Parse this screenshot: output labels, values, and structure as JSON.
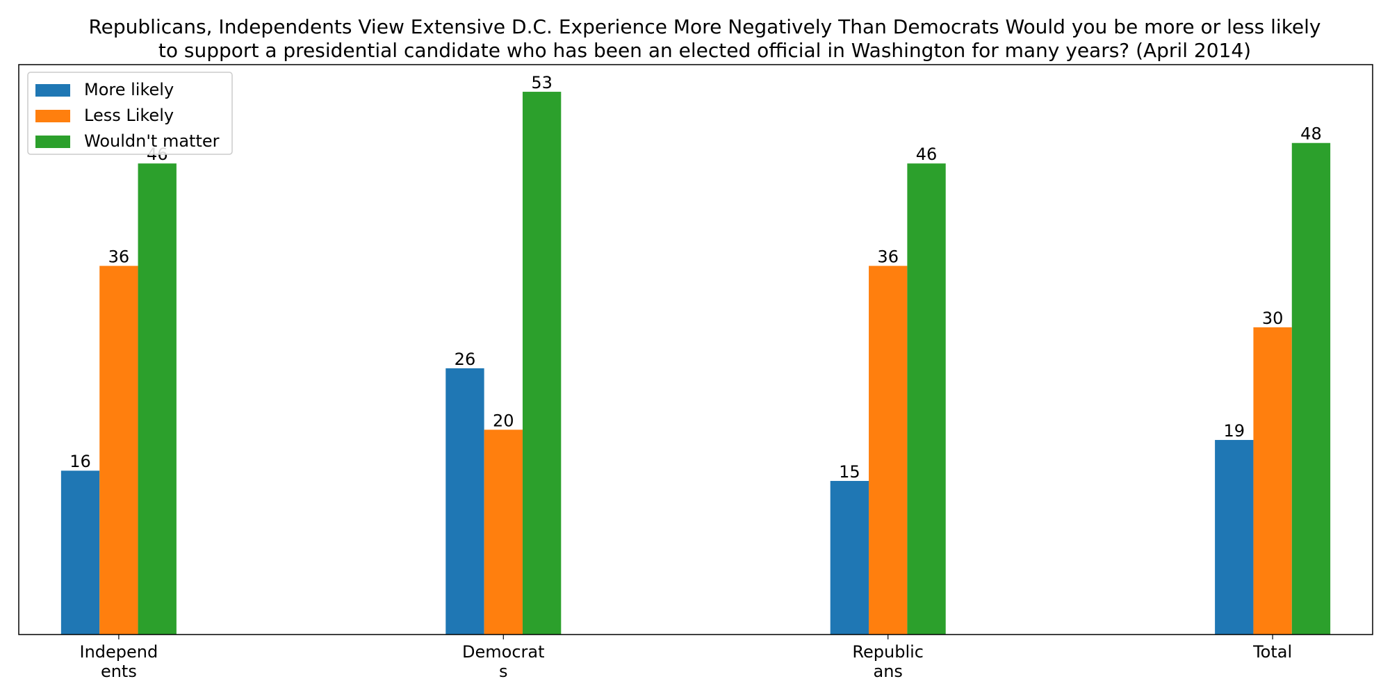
{
  "chart_data": {
    "type": "bar",
    "title_lines": [
      "Republicans, Independents View Extensive D.C. Experience More Negatively Than Democrats Would you be more or less likely",
      "to support a presidential candidate who has been an elected official in Washington for many years? (April 2014)"
    ],
    "categories": [
      [
        "Independ",
        "ents"
      ],
      [
        "Democrat",
        "s"
      ],
      [
        "Republic",
        "ans"
      ],
      [
        "Total"
      ]
    ],
    "series": [
      {
        "name": "More likely",
        "color": "#1f77b4",
        "values": [
          16,
          26,
          15,
          19
        ]
      },
      {
        "name": "Less Likely",
        "color": "#ff7f0e",
        "values": [
          36,
          20,
          36,
          30
        ]
      },
      {
        "name": "Wouldn't matter",
        "color": "#2ca02c",
        "values": [
          46,
          53,
          46,
          48
        ]
      }
    ],
    "ylim": [
      0,
      55.65
    ],
    "legend_position": "top-left",
    "show_y_axis": false,
    "grid": false
  }
}
